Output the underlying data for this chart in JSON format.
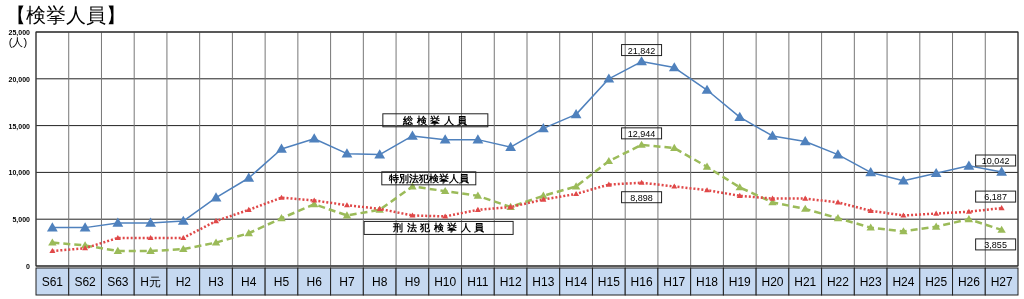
{
  "chart_data": {
    "type": "line",
    "title": "【検挙人員】",
    "ylabel": "(人)",
    "categories": [
      "S61",
      "S62",
      "S63",
      "H元",
      "H2",
      "H3",
      "H4",
      "H5",
      "H6",
      "H7",
      "H8",
      "H9",
      "H10",
      "H11",
      "H12",
      "H13",
      "H14",
      "H15",
      "H16",
      "H17",
      "H18",
      "H19",
      "H20",
      "H21",
      "H22",
      "H23",
      "H24",
      "H25",
      "H26",
      "H27"
    ],
    "series": [
      {
        "name": "総 検 挙 人 員",
        "color": "#4f81bd",
        "line_style": "solid",
        "values": [
          4100,
          4100,
          4600,
          4600,
          4800,
          7300,
          9400,
          12500,
          13600,
          12000,
          11900,
          13900,
          13500,
          13500,
          12700,
          14700,
          16200,
          20000,
          21842,
          21200,
          18800,
          15900,
          13900,
          13300,
          11900,
          10000,
          9100,
          9900,
          10700,
          10042
        ],
        "value_labels": [
          null,
          null,
          null,
          null,
          null,
          null,
          null,
          null,
          null,
          null,
          null,
          null,
          null,
          null,
          null,
          null,
          null,
          null,
          "21,842",
          null,
          null,
          null,
          null,
          null,
          null,
          null,
          null,
          null,
          null,
          "10,042"
        ]
      },
      {
        "name": "特別法犯検挙人員",
        "color": "#9bbb59",
        "line_style": "dashed",
        "values": [
          2500,
          2200,
          1600,
          1600,
          1800,
          2500,
          3500,
          5100,
          6600,
          5400,
          6000,
          8500,
          8000,
          7500,
          6300,
          7500,
          8500,
          11200,
          12944,
          12600,
          10600,
          8400,
          6800,
          6100,
          5100,
          4100,
          3700,
          4200,
          5000,
          3855
        ],
        "value_labels": [
          null,
          null,
          null,
          null,
          null,
          null,
          null,
          null,
          null,
          null,
          null,
          null,
          null,
          null,
          null,
          null,
          null,
          null,
          "12,944",
          null,
          null,
          null,
          null,
          null,
          null,
          null,
          null,
          null,
          null,
          "3,855"
        ]
      },
      {
        "name": "刑 法 犯 検 挙 人 員",
        "color": "#e04848",
        "line_style": "dotted",
        "values": [
          1600,
          1900,
          3000,
          3000,
          3000,
          4800,
          6000,
          7300,
          7000,
          6500,
          6100,
          5400,
          5300,
          6000,
          6300,
          7100,
          7700,
          8700,
          8898,
          8500,
          8100,
          7500,
          7200,
          7200,
          6800,
          5900,
          5400,
          5600,
          5800,
          6187
        ],
        "value_labels": [
          null,
          null,
          null,
          null,
          null,
          null,
          null,
          null,
          null,
          null,
          null,
          null,
          null,
          null,
          null,
          null,
          null,
          null,
          "8,898",
          null,
          null,
          null,
          null,
          null,
          null,
          null,
          null,
          null,
          null,
          "6,187"
        ]
      }
    ],
    "ylim": [
      0,
      25000
    ],
    "yticks": [
      {
        "value": 0,
        "label": "0"
      },
      {
        "value": 5000,
        "label": "5,000"
      },
      {
        "value": 10000,
        "label": "10,000"
      },
      {
        "value": 15000,
        "label": "15,000"
      },
      {
        "value": 20000,
        "label": "20,000"
      },
      {
        "value": 25000,
        "label": "25,000"
      }
    ],
    "grid": true,
    "legend": false,
    "marker": "triangle"
  }
}
